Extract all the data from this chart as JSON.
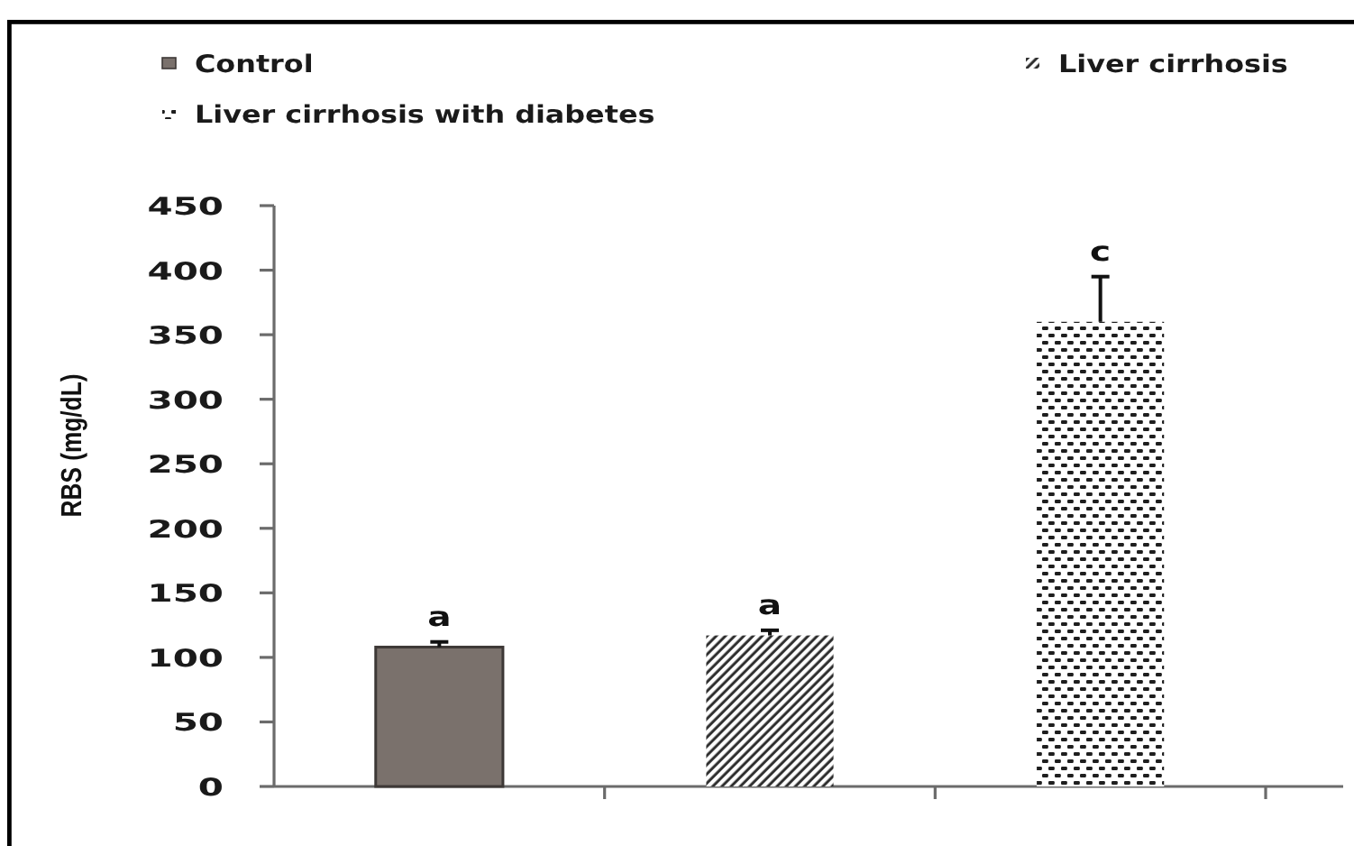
{
  "chart_data": {
    "type": "bar",
    "ylabel": "RBS (mg/dL)",
    "categories": [
      null,
      null,
      null
    ],
    "series": [
      {
        "name": "Control",
        "color": "#7a716c",
        "values": [
          108,
          null,
          null
        ],
        "errors": [
          [
            108,
            112
          ],
          null,
          null
        ],
        "value_labels": [
          "a",
          null,
          null
        ]
      },
      {
        "name": "Liver cirrhosis",
        "color": "#2b2b2b",
        "values": [
          null,
          117,
          null
        ],
        "errors": [
          null,
          [
            117,
            121
          ],
          null
        ],
        "value_labels": [
          null,
          "a",
          null
        ]
      },
      {
        "name": "Liver cirrhosis with diabetes",
        "color": "#1e1e1e",
        "values": [
          null,
          null,
          360
        ],
        "errors": [
          null,
          null,
          [
            360,
            395
          ]
        ],
        "value_labels": [
          null,
          null,
          "c"
        ]
      }
    ],
    "ylim": [
      0,
      450
    ],
    "yticks": [
      0,
      50,
      100,
      150,
      200,
      250,
      300,
      350,
      400,
      450
    ],
    "legend": "top"
  }
}
